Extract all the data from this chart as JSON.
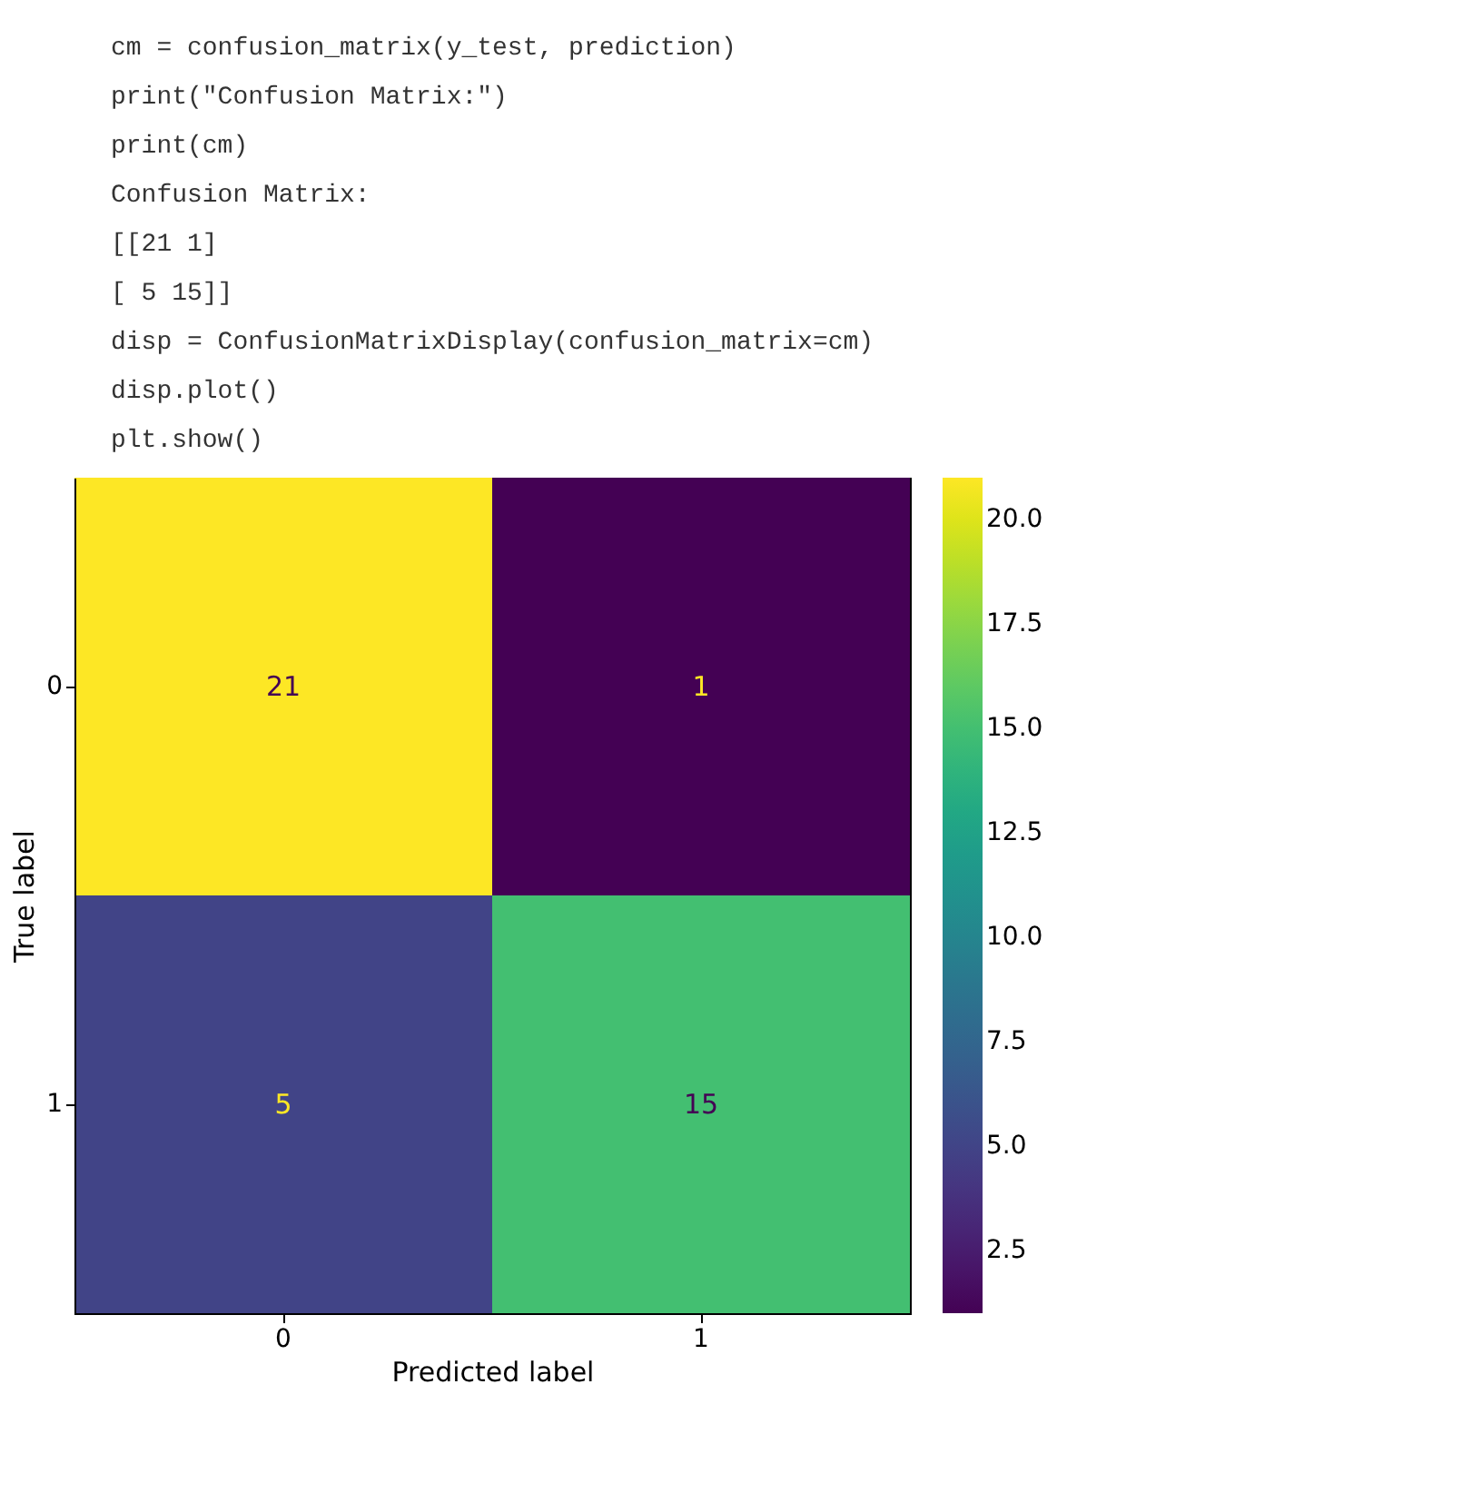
{
  "chart_data": {
    "type": "heatmap",
    "annotations": [
      "cm = confusion_matrix(y_test, prediction)",
      "print(\"Confusion Matrix:\")",
      "print(cm)",
      "Confusion Matrix:",
      "[[21  1]",
      " [ 5 15]]",
      "disp = ConfusionMatrixDisplay(confusion_matrix=cm)",
      "disp.plot()",
      "plt.show()"
    ],
    "xlabel": "Predicted label",
    "ylabel": "True label",
    "categories": [
      "0",
      "1"
    ],
    "y_categories": [
      "0",
      "1"
    ],
    "cells": [
      [
        21,
        1
      ],
      [
        5,
        15
      ]
    ],
    "clim": [
      1,
      21
    ],
    "data_labels": true,
    "cticks": [
      {
        "value": 2.5,
        "label": "2.5"
      },
      {
        "value": 5,
        "label": "5.0"
      },
      {
        "value": 7.5,
        "label": "7.5"
      },
      {
        "value": 10,
        "label": "10.0"
      },
      {
        "value": 12.5,
        "label": "12.5"
      },
      {
        "value": 15,
        "label": "15.0"
      },
      {
        "value": 17.5,
        "label": "17.5"
      },
      {
        "value": 20,
        "label": "20.0"
      }
    ]
  }
}
